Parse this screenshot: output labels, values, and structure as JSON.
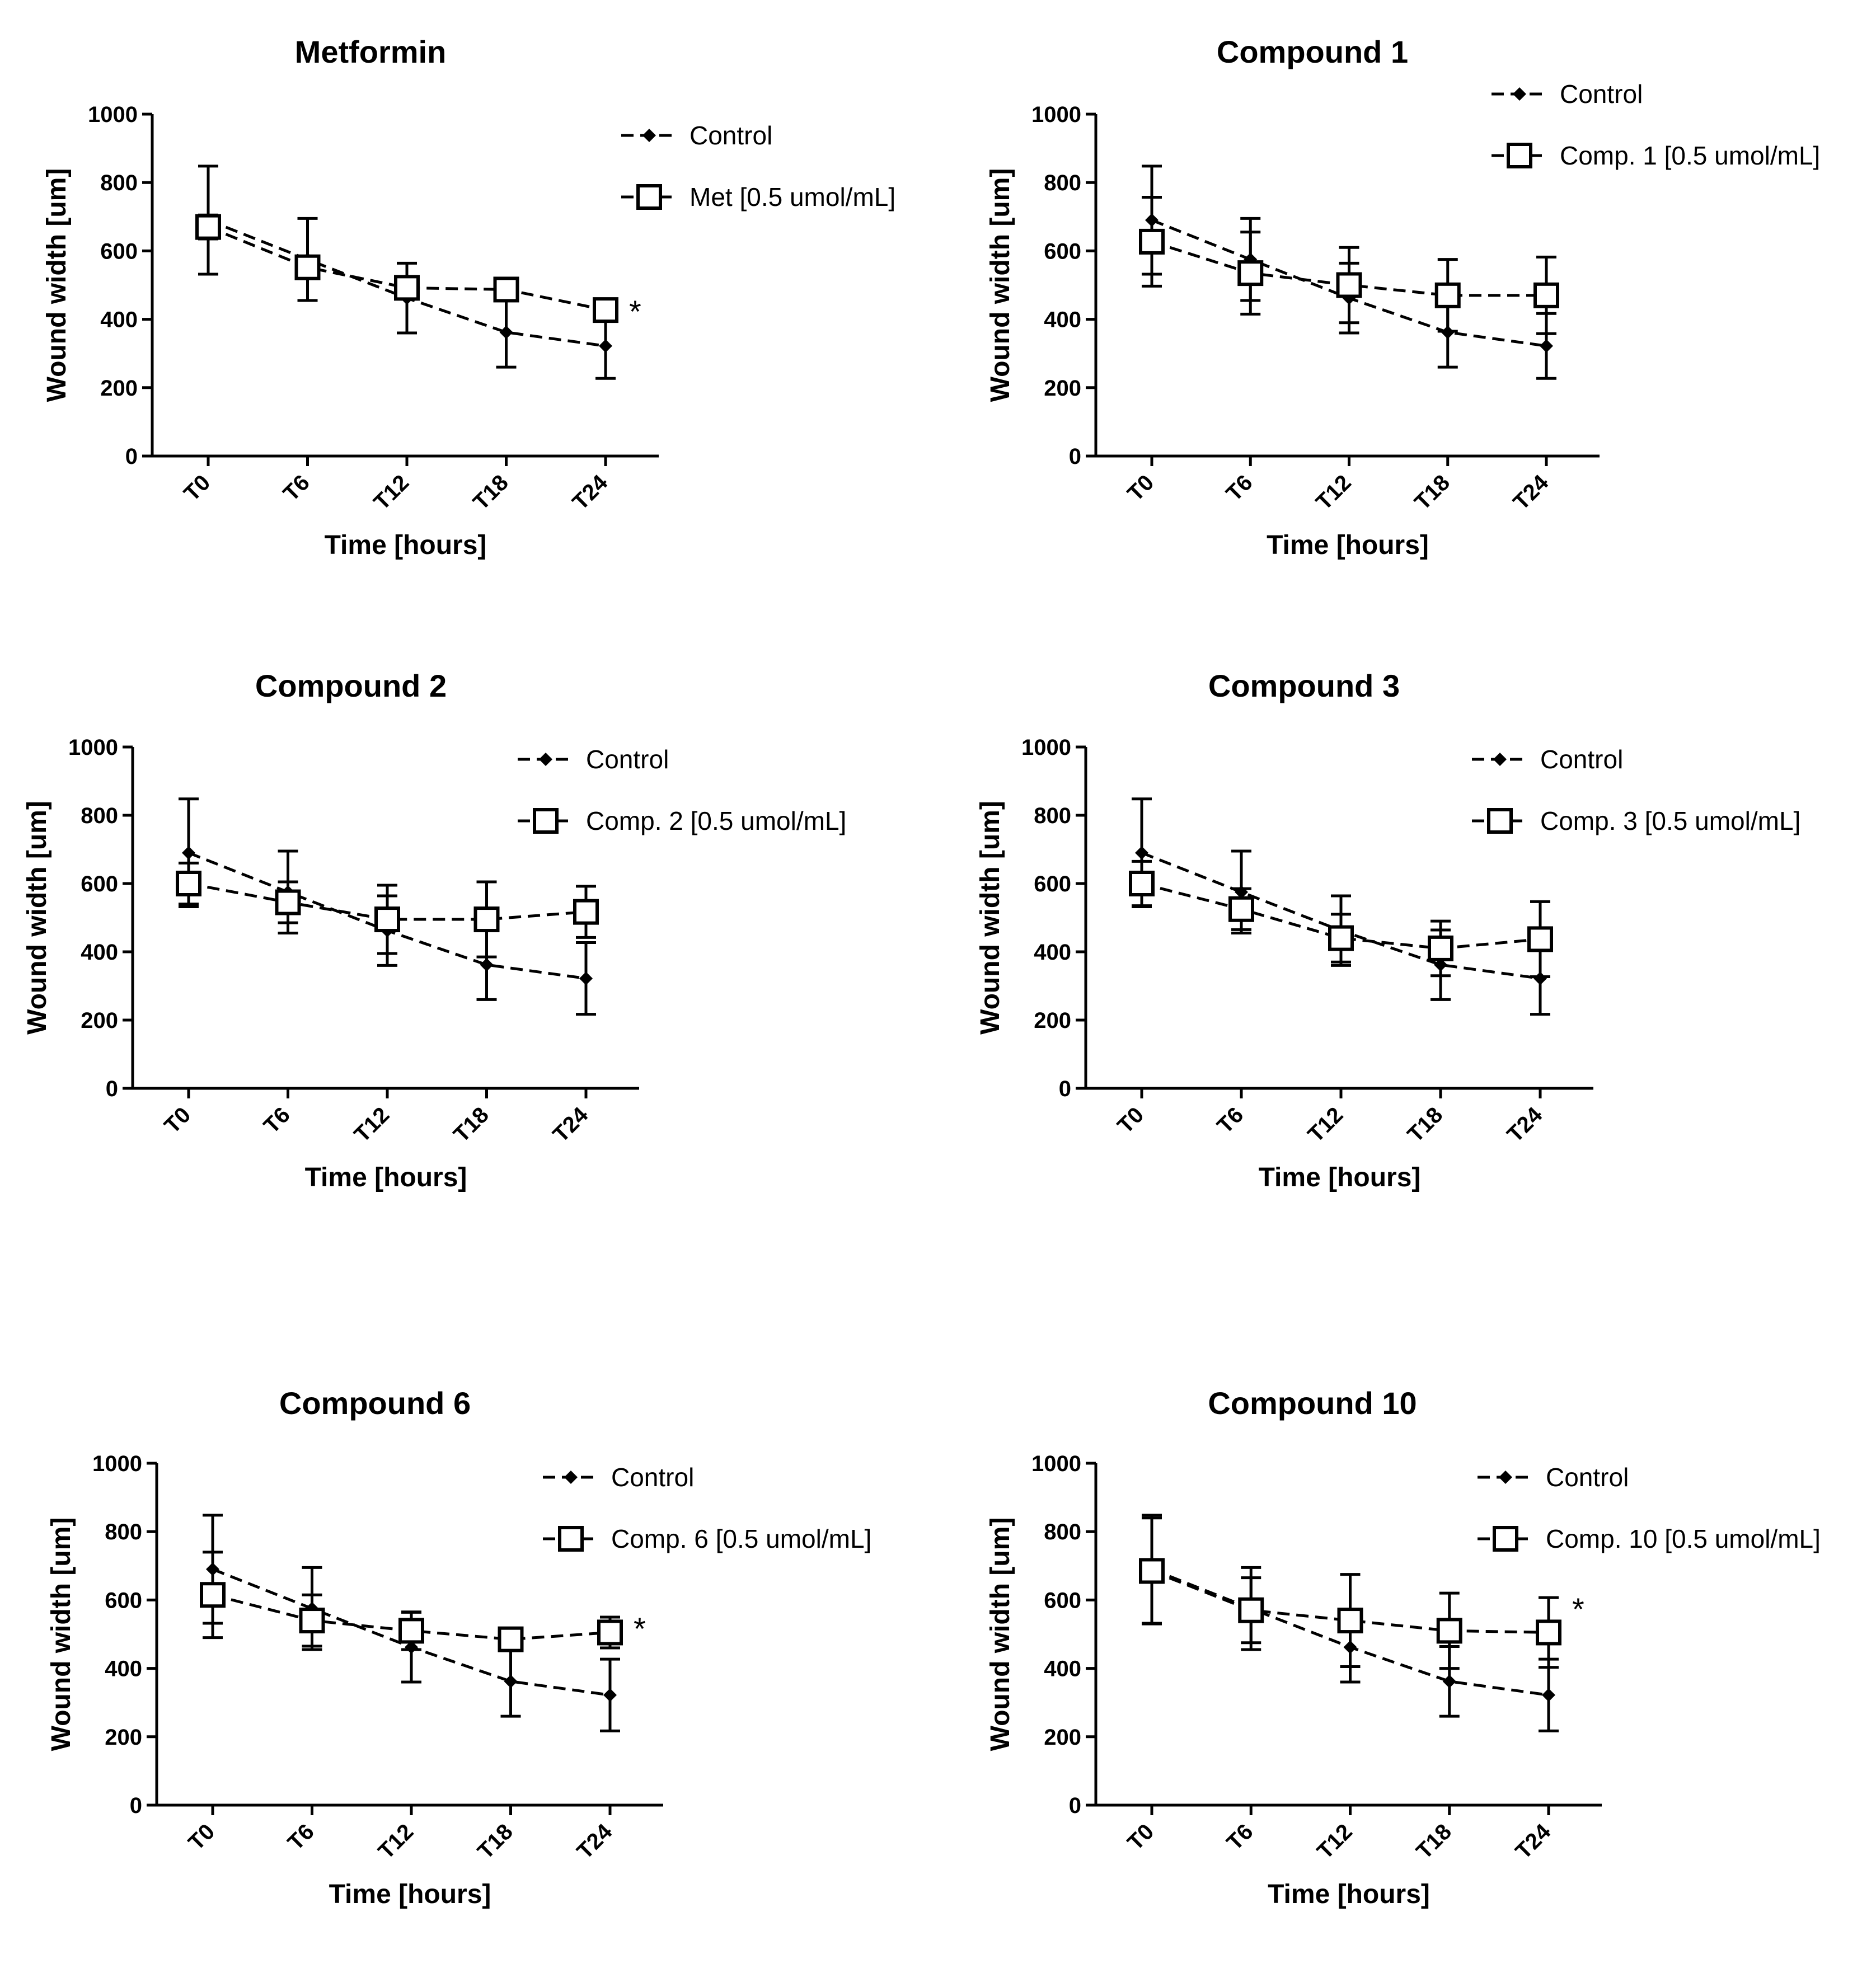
{
  "chart_data": [
    {
      "type": "line",
      "title": "Metformin",
      "xlabel": "Time [hours]",
      "ylabel": "Wound width [um]",
      "categories": [
        "T0",
        "T6",
        "T12",
        "T18",
        "T24"
      ],
      "ylim": [
        0,
        1000
      ],
      "yticks": [
        "0",
        "200",
        "400",
        "600",
        "800",
        "1000"
      ],
      "series": [
        {
          "name": "Control",
          "marker": "diamond",
          "values": [
            690,
            575,
            462,
            362,
            322
          ],
          "errors": [
            158,
            120,
            102,
            102,
            95
          ]
        },
        {
          "name": "Met [0.5 umol/mL]",
          "marker": "square",
          "values": [
            670,
            552,
            492,
            487,
            427
          ],
          "errors": [
            35,
            20,
            15,
            15,
            30
          ]
        }
      ],
      "annotation": "*"
    },
    {
      "type": "line",
      "title": "Compound 1",
      "xlabel": "Time [hours]",
      "ylabel": "Wound width [um]",
      "categories": [
        "T0",
        "T6",
        "T12",
        "T18",
        "T24"
      ],
      "ylim": [
        0,
        1000
      ],
      "yticks": [
        "0",
        "200",
        "400",
        "600",
        "800",
        "1000"
      ],
      "series": [
        {
          "name": "Control",
          "marker": "diamond",
          "values": [
            690,
            575,
            462,
            362,
            322
          ],
          "errors": [
            158,
            120,
            102,
            102,
            95
          ]
        },
        {
          "name": "Comp. 1 [0.5 umol/mL]",
          "marker": "square",
          "values": [
            627,
            535,
            500,
            470,
            470
          ],
          "errors": [
            130,
            120,
            110,
            105,
            112
          ]
        }
      ],
      "annotation": ""
    },
    {
      "type": "line",
      "title": "Compound 2",
      "xlabel": "Time [hours]",
      "ylabel": "Wound width [um]",
      "categories": [
        "T0",
        "T6",
        "T12",
        "T18",
        "T24"
      ],
      "ylim": [
        0,
        1000
      ],
      "yticks": [
        "0",
        "200",
        "400",
        "600",
        "800",
        "1000"
      ],
      "series": [
        {
          "name": "Control",
          "marker": "diamond",
          "values": [
            690,
            575,
            462,
            362,
            322
          ],
          "errors": [
            158,
            120,
            102,
            102,
            105
          ]
        },
        {
          "name": "Comp. 2 [0.5 umol/mL]",
          "marker": "square",
          "values": [
            600,
            545,
            495,
            495,
            517
          ],
          "errors": [
            60,
            60,
            100,
            110,
            75
          ]
        }
      ],
      "annotation": ""
    },
    {
      "type": "line",
      "title": "Compound 3",
      "xlabel": "Time [hours]",
      "ylabel": "Wound width [um]",
      "categories": [
        "T0",
        "T6",
        "T12",
        "T18",
        "T24"
      ],
      "ylim": [
        0,
        1000
      ],
      "yticks": [
        "0",
        "200",
        "400",
        "600",
        "800",
        "1000"
      ],
      "series": [
        {
          "name": "Control",
          "marker": "diamond",
          "values": [
            690,
            575,
            462,
            362,
            322
          ],
          "errors": [
            158,
            120,
            102,
            102,
            105
          ]
        },
        {
          "name": "Comp. 3 [0.5 umol/mL]",
          "marker": "square",
          "values": [
            600,
            525,
            440,
            410,
            437
          ],
          "errors": [
            65,
            60,
            70,
            80,
            110
          ]
        }
      ],
      "annotation": ""
    },
    {
      "type": "line",
      "title": "Compound 6",
      "xlabel": "Time [hours]",
      "ylabel": "Wound width [um]",
      "categories": [
        "T0",
        "T6",
        "T12",
        "T18",
        "T24"
      ],
      "ylim": [
        0,
        1000
      ],
      "yticks": [
        "0",
        "200",
        "400",
        "600",
        "800",
        "1000"
      ],
      "series": [
        {
          "name": "Control",
          "marker": "diamond",
          "values": [
            690,
            575,
            462,
            362,
            322
          ],
          "errors": [
            158,
            120,
            102,
            102,
            105
          ]
        },
        {
          "name": "Comp. 6 [0.5 umol/mL]",
          "marker": "square",
          "values": [
            615,
            540,
            510,
            485,
            505
          ],
          "errors": [
            125,
            75,
            55,
            20,
            45
          ]
        }
      ],
      "annotation": "*"
    },
    {
      "type": "line",
      "title": "Compound 10",
      "xlabel": "Time [hours]",
      "ylabel": "Wound width [um]",
      "categories": [
        "T0",
        "T6",
        "T12",
        "T18",
        "T24"
      ],
      "ylim": [
        0,
        1000
      ],
      "yticks": [
        "0",
        "200",
        "400",
        "600",
        "800",
        "1000"
      ],
      "series": [
        {
          "name": "Control",
          "marker": "diamond",
          "values": [
            690,
            575,
            462,
            362,
            322
          ],
          "errors": [
            158,
            120,
            102,
            102,
            105
          ]
        },
        {
          "name": "Comp. 10 [0.5 umol/mL]",
          "marker": "square",
          "values": [
            685,
            570,
            540,
            510,
            505
          ],
          "errors": [
            155,
            95,
            135,
            110,
            102
          ]
        }
      ],
      "annotation": "*"
    }
  ]
}
